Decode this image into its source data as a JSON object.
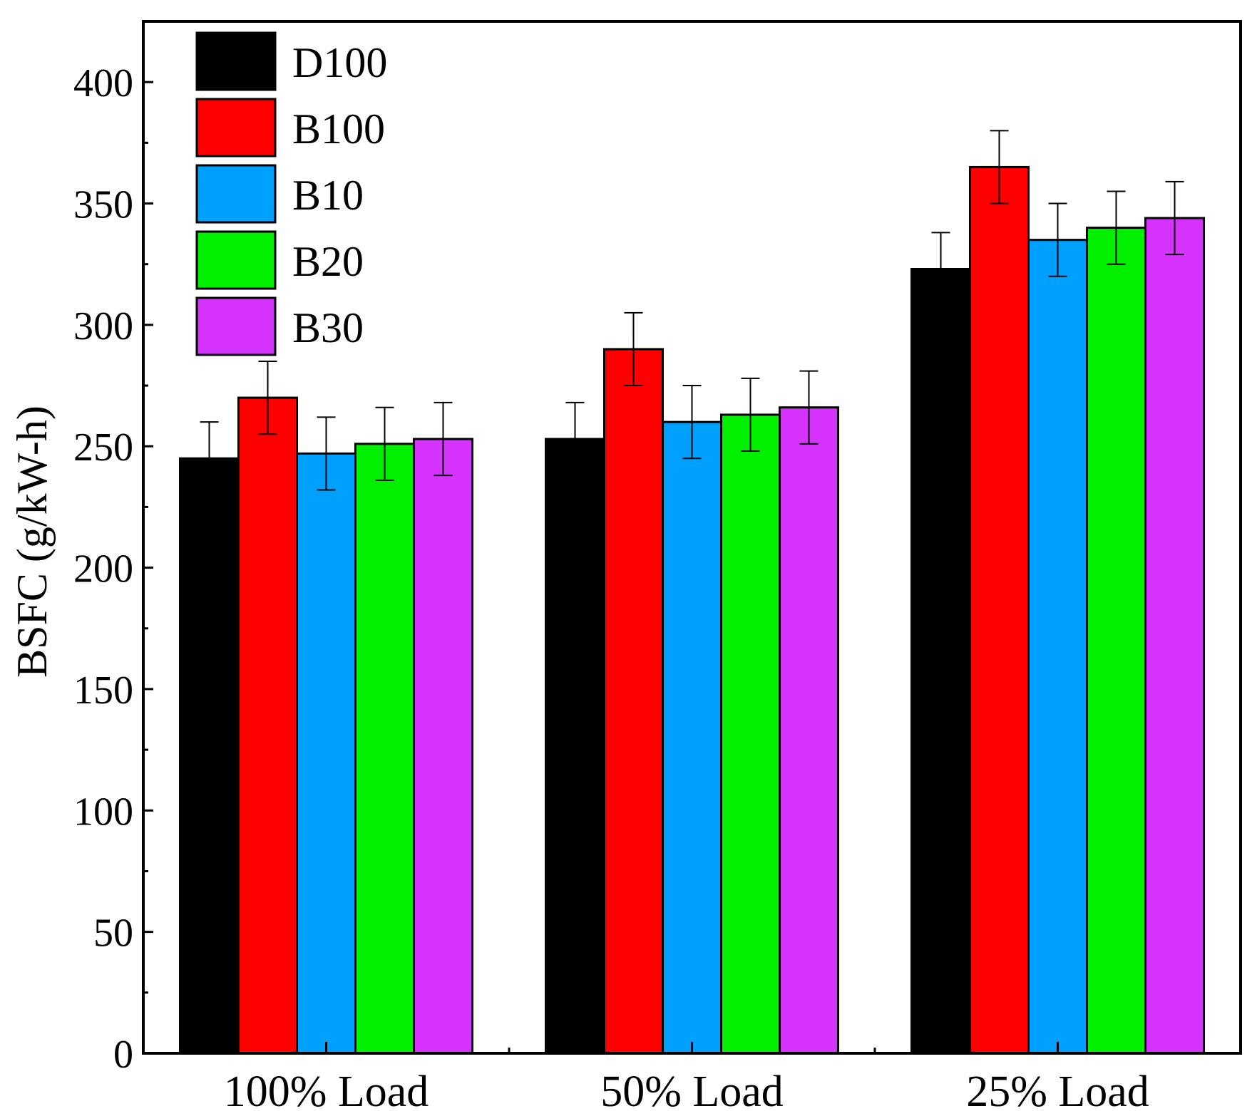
{
  "chart_data": {
    "type": "bar",
    "title": "",
    "xlabel": "",
    "ylabel": "BSFC (g/kW-h)",
    "ylim": [
      0,
      425
    ],
    "yticks": [
      0,
      50,
      100,
      150,
      200,
      250,
      300,
      350,
      400
    ],
    "ytick_labels": [
      "0",
      "50",
      "100",
      "150",
      "200",
      "250",
      "300",
      "350",
      "400"
    ],
    "categories": [
      "100% Load",
      "50% Load",
      "25% Load"
    ],
    "legend_position": "top-left",
    "series": [
      {
        "name": "D100",
        "color": "#000000",
        "values": [
          245,
          253,
          323
        ],
        "errors": [
          15,
          15,
          15
        ]
      },
      {
        "name": "B100",
        "color": "#ff0000",
        "values": [
          270,
          290,
          365
        ],
        "errors": [
          15,
          15,
          15
        ]
      },
      {
        "name": "B10",
        "color": "#00a0ff",
        "values": [
          247,
          260,
          335
        ],
        "errors": [
          15,
          15,
          15
        ]
      },
      {
        "name": "B20",
        "color": "#00f000",
        "values": [
          251,
          263,
          340
        ],
        "errors": [
          15,
          15,
          15
        ]
      },
      {
        "name": "B30",
        "color": "#d633ff",
        "values": [
          253,
          266,
          344
        ],
        "errors": [
          15,
          15,
          15
        ]
      }
    ]
  }
}
